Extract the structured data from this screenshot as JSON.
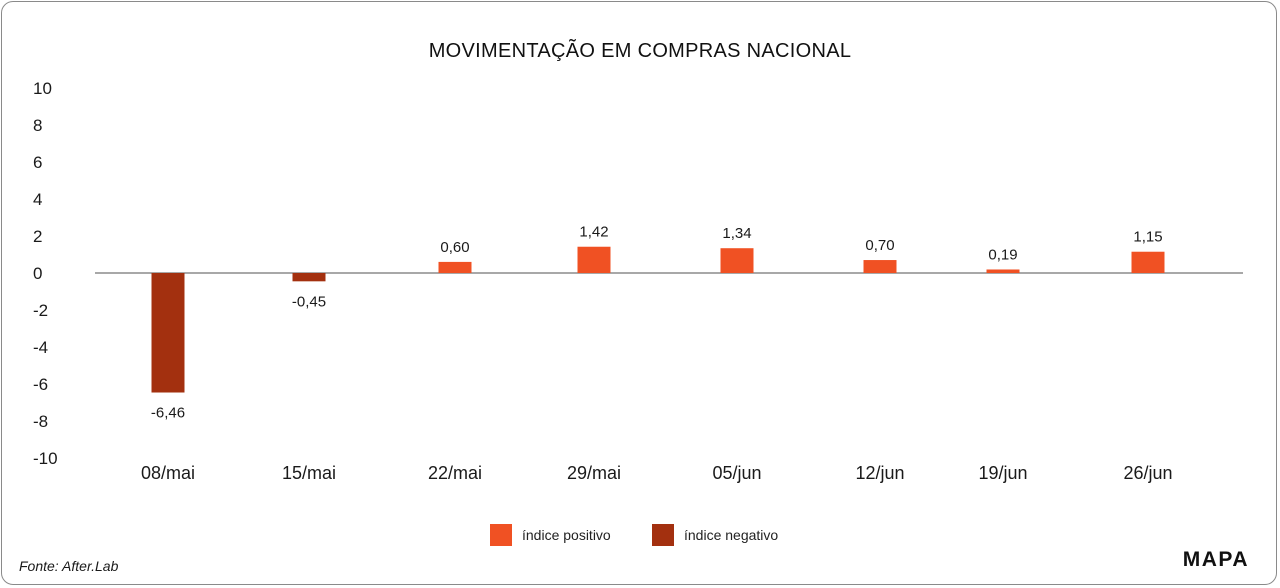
{
  "chart_data": {
    "type": "bar",
    "title": "MOVIMENTAÇÃO EM COMPRAS NACIONAL",
    "categories": [
      "08/mai",
      "15/mai",
      "22/mai",
      "29/mai",
      "05/jun",
      "12/jun",
      "19/jun",
      "26/jun"
    ],
    "values": [
      -6.46,
      -0.45,
      0.6,
      1.42,
      1.34,
      0.7,
      0.19,
      1.15
    ],
    "value_labels": [
      "-6,46",
      "-0,45",
      "0,60",
      "1,42",
      "1,34",
      "0,70",
      "0,19",
      "1,15"
    ],
    "ylim": [
      -10,
      10
    ],
    "yticks": [
      10,
      8,
      6,
      4,
      2,
      0,
      -2,
      -4,
      -6,
      -8,
      -10
    ],
    "ytick_labels": [
      "10",
      "8",
      "6",
      "4",
      "2",
      "0",
      "-2",
      "-4",
      "-6",
      "-8",
      "-10"
    ],
    "grid": false,
    "legend_position": "bottom-center",
    "series": [
      {
        "name": "índice positivo",
        "color": "#f05123"
      },
      {
        "name": "índice negativo",
        "color": "#a3300f"
      }
    ]
  },
  "source": "Fonte: After.Lab",
  "logo": "MAPA"
}
